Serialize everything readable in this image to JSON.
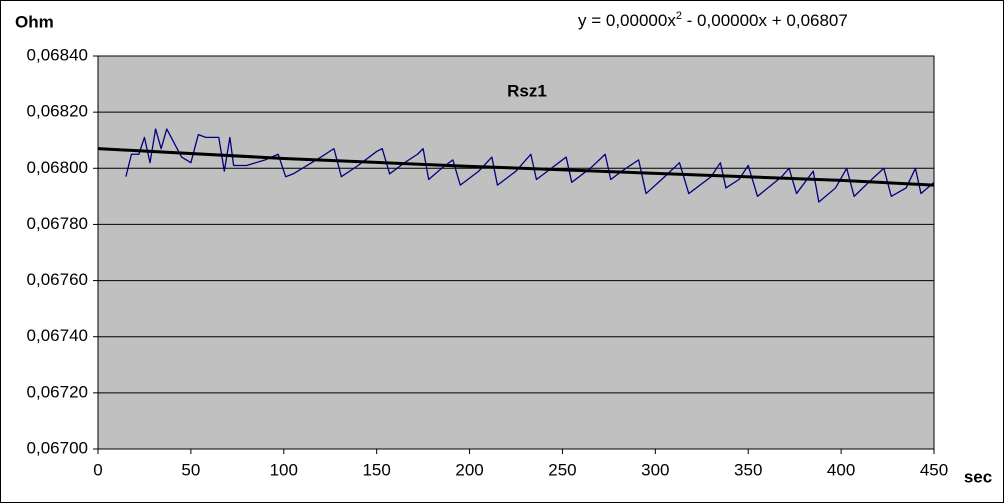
{
  "chart_data": {
    "type": "line",
    "title": "Rsz1",
    "y_label": "Ohm",
    "x_label": "sec",
    "equation": {
      "base": "y = 0,00000x",
      "sup": "2",
      "rest": " - 0,00000x + 0,06807"
    },
    "xlim": [
      0,
      450
    ],
    "xticks": [
      0,
      50,
      100,
      150,
      200,
      250,
      300,
      350,
      400,
      450
    ],
    "ylim": [
      0.067,
      0.0684
    ],
    "yticks": [
      {
        "value": 0.067,
        "label": "0,06700"
      },
      {
        "value": 0.0672,
        "label": "0,06720"
      },
      {
        "value": 0.0674,
        "label": "0,06740"
      },
      {
        "value": 0.0676,
        "label": "0,06760"
      },
      {
        "value": 0.0678,
        "label": "0,06780"
      },
      {
        "value": 0.068,
        "label": "0,06800"
      },
      {
        "value": 0.0682,
        "label": "0,06820"
      },
      {
        "value": 0.0684,
        "label": "0,06840"
      }
    ],
    "grid": true,
    "background": "#c0c0c0",
    "series": [
      {
        "color": "#000080",
        "width": 1.3,
        "x": [
          15,
          18,
          22,
          25,
          28,
          31,
          34,
          37,
          41,
          45,
          50,
          54,
          58,
          65,
          68,
          71,
          73,
          80,
          90,
          97,
          101,
          105,
          110,
          120,
          127,
          131,
          140,
          150,
          153,
          157,
          165,
          172,
          175,
          178,
          185,
          191,
          195,
          205,
          212,
          215,
          225,
          233,
          236,
          242,
          252,
          255,
          265,
          273,
          276,
          282,
          291,
          295,
          305,
          313,
          318,
          330,
          335,
          338,
          345,
          350,
          355,
          368,
          372,
          376,
          385,
          388,
          397,
          403,
          407,
          418,
          423,
          427,
          435,
          440,
          443,
          450
        ],
        "values": [
          0.06797,
          0.06805,
          0.06805,
          0.06811,
          0.06802,
          0.06814,
          0.06807,
          0.06814,
          0.06809,
          0.06804,
          0.06802,
          0.06812,
          0.06811,
          0.06811,
          0.06799,
          0.06811,
          0.06801,
          0.06801,
          0.06803,
          0.06805,
          0.06797,
          0.06798,
          0.068,
          0.06804,
          0.06807,
          0.06797,
          0.06801,
          0.06806,
          0.06807,
          0.06798,
          0.06802,
          0.06805,
          0.06807,
          0.06796,
          0.068,
          0.06803,
          0.06794,
          0.06799,
          0.06804,
          0.06794,
          0.06799,
          0.06805,
          0.06796,
          0.06799,
          0.06804,
          0.06795,
          0.068,
          0.06805,
          0.06796,
          0.06799,
          0.06803,
          0.06791,
          0.06797,
          0.06802,
          0.06791,
          0.06797,
          0.06802,
          0.06793,
          0.06796,
          0.06801,
          0.0679,
          0.06797,
          0.068,
          0.06791,
          0.06799,
          0.06788,
          0.06793,
          0.068,
          0.0679,
          0.06797,
          0.068,
          0.0679,
          0.06793,
          0.068,
          0.06791,
          0.06795
        ]
      },
      {
        "color": "#000000",
        "width": 3,
        "x": [
          0,
          100,
          200,
          300,
          400,
          450
        ],
        "values": [
          0.06807,
          0.068035,
          0.068007,
          0.067982,
          0.067957,
          0.06794
        ]
      }
    ]
  }
}
